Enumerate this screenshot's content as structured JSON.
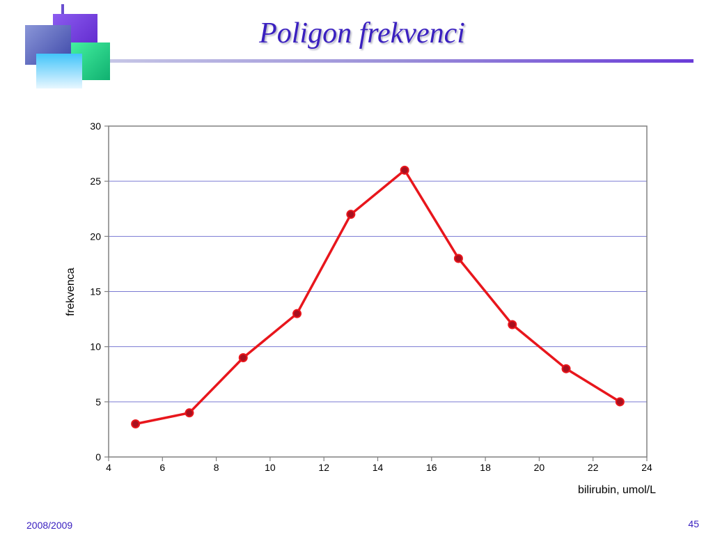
{
  "slide": {
    "title": "Poligon frekvenci",
    "footer_left": "2008/2009",
    "page_number": "45",
    "accent_color": "#3a20c0"
  },
  "chart_data": {
    "type": "line",
    "title": "",
    "xlabel": "bilirubin, umol/L",
    "ylabel": "frekvenca",
    "xlim": [
      4,
      24
    ],
    "ylim": [
      0,
      30
    ],
    "x_ticks": [
      4,
      6,
      8,
      10,
      12,
      14,
      16,
      18,
      20,
      22,
      24
    ],
    "y_ticks": [
      0,
      5,
      10,
      15,
      20,
      25,
      30
    ],
    "grid": "horizontal",
    "legend": "none",
    "series": [
      {
        "color": "#e8161c",
        "marker_color": "#a8101e",
        "x": [
          5,
          7,
          9,
          11,
          13,
          15,
          17,
          19,
          21,
          23
        ],
        "y": [
          3,
          4,
          9,
          13,
          22,
          26,
          18,
          12,
          8,
          5
        ]
      }
    ]
  }
}
